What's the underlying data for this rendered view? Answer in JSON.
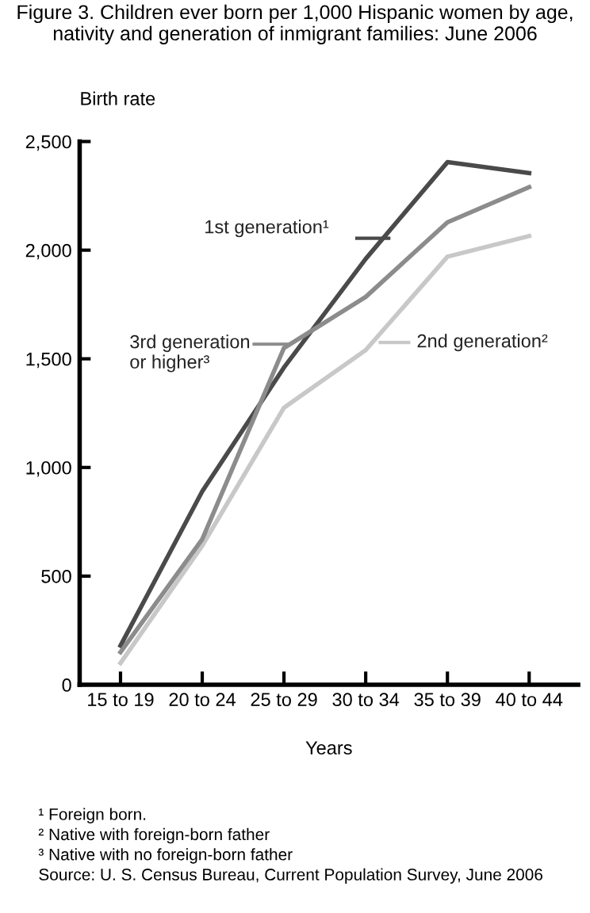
{
  "chart_data": {
    "type": "line",
    "title": "Figure 3. Children ever born per 1,000 Hispanic women by age, nativity and generation of inmigrant families: June 2006",
    "ylabel": "Birth rate",
    "xlabel": "Years",
    "categories": [
      "15 to 19",
      "20 to 24",
      "25 to 29",
      "30 to 34",
      "35 to 39",
      "40 to 44"
    ],
    "series": [
      {
        "name": "1st generation¹",
        "color": "#4a4a4a",
        "values": [
          180,
          890,
          1460,
          1960,
          2405,
          2355
        ]
      },
      {
        "name": "2nd generation²",
        "color": "#c8c8c8",
        "values": [
          100,
          640,
          1275,
          1540,
          1970,
          2065
        ]
      },
      {
        "name": "3rd generation\nor higher³",
        "color": "#8c8c8c",
        "values": [
          150,
          670,
          1550,
          1785,
          2128,
          2290
        ]
      }
    ],
    "ylim": [
      0,
      2500
    ],
    "yticks": [
      0,
      {
        "value": 500,
        "label": "500"
      },
      {
        "value": 1000,
        "label": "1,000"
      },
      {
        "value": 1500,
        "label": "1,500"
      },
      {
        "value": 2000,
        "label": "2,000"
      },
      {
        "value": 2500,
        "label": "2,500"
      }
    ],
    "grid": false,
    "legend": "left",
    "marker": "none",
    "line_style": "solid",
    "annotations": [
      "¹ Foreign born.",
      "² Native with foreign-born father",
      "³ Native with no foreign-born father",
      "Source: U. S. Census Bureau, Current Population Survey, June 2006"
    ]
  }
}
